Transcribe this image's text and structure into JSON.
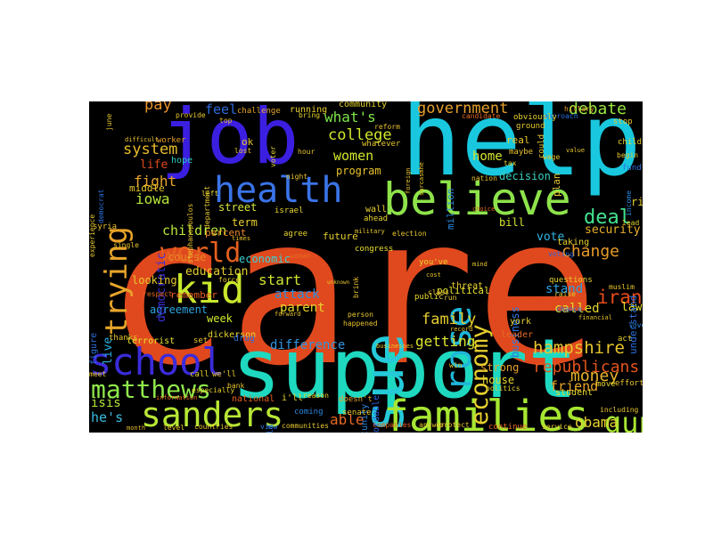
{
  "background": "#000000",
  "words": [
    {
      "text": "care",
      "color": "#e0491d"
    },
    {
      "text": "support",
      "color": "#1ed9c0"
    },
    {
      "text": "help",
      "color": "#19c8de"
    },
    {
      "text": "job",
      "color": "#3b1fe0"
    },
    {
      "text": "issue",
      "color": "#25c9d8"
    },
    {
      "text": "believe",
      "color": "#8ee34a"
    },
    {
      "text": "families",
      "color": "#a6e632"
    },
    {
      "text": "school",
      "color": "#3b2bdb"
    },
    {
      "text": "health",
      "color": "#3a74e8"
    },
    {
      "text": "sanders",
      "color": "#b7e635"
    },
    {
      "text": "matthews",
      "color": "#8fe84b"
    },
    {
      "text": "kid",
      "color": "#c8e82c"
    },
    {
      "text": "trying",
      "color": "#e8a52a"
    },
    {
      "text": "world",
      "color": "#e6601f"
    },
    {
      "text": "economy",
      "color": "#e8d02e"
    },
    {
      "text": "rose",
      "color": "#1fb6d9"
    },
    {
      "text": "gun",
      "color": "#a8e532"
    },
    {
      "text": "deal",
      "color": "#43e28f"
    },
    {
      "text": "government",
      "color": "#e8a12c"
    },
    {
      "text": "debate",
      "color": "#9ae740"
    },
    {
      "text": "college",
      "color": "#d2e72c"
    },
    {
      "text": "family",
      "color": "#e6cd2e"
    },
    {
      "text": "iran",
      "color": "#e84b1c"
    },
    {
      "text": "hampshire",
      "color": "#e8c62d"
    },
    {
      "text": "republicans",
      "color": "#e3541e"
    },
    {
      "text": "money",
      "color": "#e8b62c"
    },
    {
      "text": "obama",
      "color": "#e8d42e"
    },
    {
      "text": "isis",
      "color": "#b2e537"
    },
    {
      "text": "he's",
      "color": "#3bbde0"
    },
    {
      "text": "able",
      "color": "#e86a22"
    },
    {
      "text": "change",
      "color": "#e89a2a"
    },
    {
      "text": "getting",
      "color": "#dce52e"
    },
    {
      "text": "stand",
      "color": "#2a9fe2"
    },
    {
      "text": "called",
      "color": "#e3d92e"
    },
    {
      "text": "iowa",
      "color": "#b7e63a"
    },
    {
      "text": "system",
      "color": "#e8bd2c"
    },
    {
      "text": "fight",
      "color": "#e8a52a"
    },
    {
      "text": "children",
      "color": "#b8e635"
    },
    {
      "text": "women",
      "color": "#d4e62e"
    },
    {
      "text": "what's",
      "color": "#7de64a"
    },
    {
      "text": "feel",
      "color": "#2d6bd9"
    },
    {
      "text": "pay",
      "color": "#e8902a"
    },
    {
      "text": "start",
      "color": "#d0e52e"
    },
    {
      "text": "attack",
      "color": "#2a8de0"
    },
    {
      "text": "parent",
      "color": "#e8d52e"
    },
    {
      "text": "difference",
      "color": "#2e95e0"
    },
    {
      "text": "education",
      "color": "#e6cc2e"
    },
    {
      "text": "agreement",
      "color": "#2aa6e0"
    },
    {
      "text": "democratic",
      "color": "#3a2fd8"
    },
    {
      "text": "business",
      "color": "#2a78e0"
    },
    {
      "text": "vote",
      "color": "#30b5e2"
    },
    {
      "text": "bill",
      "color": "#d8e52e"
    },
    {
      "text": "home",
      "color": "#d6e72e"
    },
    {
      "text": "security",
      "color": "#e8b02c"
    },
    {
      "text": "house",
      "color": "#e8d72e"
    },
    {
      "text": "friend",
      "color": "#e8a52a"
    },
    {
      "text": "strong",
      "color": "#e8a22a"
    },
    {
      "text": "program",
      "color": "#e8c22d"
    },
    {
      "text": "street",
      "color": "#d6e53a"
    },
    {
      "text": "term",
      "color": "#e8cf2e"
    },
    {
      "text": "looking",
      "color": "#e8c82d"
    },
    {
      "text": "course",
      "color": "#e88a28"
    },
    {
      "text": "law",
      "color": "#e8e02e"
    },
    {
      "text": "rights",
      "color": "#e8d42e"
    },
    {
      "text": "life",
      "color": "#e0491d"
    },
    {
      "text": "live",
      "color": "#2ab0e0"
    },
    {
      "text": "week",
      "color": "#cfe82e"
    },
    {
      "text": "remember",
      "color": "#e8601f"
    },
    {
      "text": "percent",
      "color": "#e8862a"
    },
    {
      "text": "decision",
      "color": "#3ad0c0"
    },
    {
      "text": "real",
      "color": "#e8c92e"
    },
    {
      "text": "million",
      "color": "#2a88e0"
    },
    {
      "text": "political",
      "color": "#e8e02e"
    },
    {
      "text": "future",
      "color": "#e8cc2e"
    },
    {
      "text": "economic",
      "color": "#3ad0d0"
    },
    {
      "text": "middle",
      "color": "#e8c82d"
    },
    {
      "text": "ok",
      "color": "#e8c92e"
    },
    {
      "text": "understand",
      "color": "#2a70e0"
    },
    {
      "text": "dickerson",
      "color": "#e8d42e"
    },
    {
      "text": "york",
      "color": "#e8d22e"
    },
    {
      "text": "terrorist",
      "color": "#e8e02e"
    },
    {
      "text": "drug",
      "color": "#2a6ee0"
    },
    {
      "text": "thanks",
      "color": "#e8c52d"
    },
    {
      "text": "figure",
      "color": "#2a72e0"
    },
    {
      "text": "student",
      "color": "#e8d82e"
    },
    {
      "text": "leader",
      "color": "#e86a22"
    },
    {
      "text": "opportunity",
      "color": "#2a86e0"
    },
    {
      "text": "affordable",
      "color": "#2a62e0"
    },
    {
      "text": "plan",
      "color": "#e8c82d"
    },
    {
      "text": "community",
      "color": "#e8d42e"
    },
    {
      "text": "running",
      "color": "#e8d02e"
    },
    {
      "text": "hope",
      "color": "#2ad0c0"
    },
    {
      "text": "worker",
      "color": "#e8a02a"
    },
    {
      "text": "public",
      "color": "#e8d72e"
    },
    {
      "text": "threat",
      "color": "#e8d22e"
    },
    {
      "text": "provide",
      "color": "#e8c82d"
    },
    {
      "text": "challenge",
      "color": "#e8a52a"
    },
    {
      "text": "israel",
      "color": "#e8d42e"
    },
    {
      "text": "wall",
      "color": "#e8d22e"
    },
    {
      "text": "congress",
      "color": "#e8e02e"
    },
    {
      "text": "you've",
      "color": "#e8d02e"
    },
    {
      "text": "agree",
      "color": "#e8d42e"
    },
    {
      "text": "woman",
      "color": "#e86a22"
    },
    {
      "text": "national",
      "color": "#e8601f"
    },
    {
      "text": "coming",
      "color": "#2a88e0"
    },
    {
      "text": "doesn't",
      "color": "#e8a52a"
    },
    {
      "text": "build",
      "color": "#2a72e0"
    },
    {
      "text": "i'll",
      "color": "#e8d42e"
    },
    {
      "text": "we'll",
      "color": "#e8c82d"
    },
    {
      "text": "call",
      "color": "#e8d02e"
    },
    {
      "text": "meet",
      "color": "#e8c82d"
    },
    {
      "text": "bank",
      "color": "#e8c22d"
    },
    {
      "text": "especially",
      "color": "#e8d02e"
    },
    {
      "text": "countries",
      "color": "#e8c82d"
    },
    {
      "text": "level",
      "color": "#e8c22d"
    },
    {
      "text": "month",
      "color": "#e8b82c"
    },
    {
      "text": "view",
      "color": "#2a78e0"
    },
    {
      "text": "communities",
      "color": "#e8c82d"
    },
    {
      "text": "reason",
      "color": "#e8d42e"
    },
    {
      "text": "senate",
      "color": "#e8c82d"
    },
    {
      "text": "companies",
      "color": "#e8601f"
    },
    {
      "text": "answer",
      "color": "#e8c82d"
    },
    {
      "text": "protect",
      "color": "#e8c22d"
    },
    {
      "text": "continue",
      "color": "#e86a22"
    },
    {
      "text": "service",
      "color": "#e8c82d"
    },
    {
      "text": "including",
      "color": "#e8c82d"
    },
    {
      "text": "move",
      "color": "#e8d42e"
    },
    {
      "text": "effort",
      "color": "#e8c22d"
    },
    {
      "text": "act",
      "color": "#e8d42e"
    },
    {
      "text": "love",
      "color": "#2a88e0"
    },
    {
      "text": "chance",
      "color": "#2a78e0"
    },
    {
      "text": "raise",
      "color": "#e8c82d"
    },
    {
      "text": "questions",
      "color": "#e8d42e"
    },
    {
      "text": "taking",
      "color": "#e8d02e"
    },
    {
      "text": "voting",
      "color": "#2a62e0"
    },
    {
      "text": "muslim",
      "color": "#e8c82d"
    },
    {
      "text": "financial",
      "color": "#e8c22d"
    },
    {
      "text": "lead",
      "color": "#e8d42e"
    },
    {
      "text": "income",
      "color": "#2a88e0"
    },
    {
      "text": "fund",
      "color": "#2a72e0"
    },
    {
      "text": "begin",
      "color": "#e8c82d"
    },
    {
      "text": "child",
      "color": "#e8d42e"
    },
    {
      "text": "stop",
      "color": "#e8c82d"
    },
    {
      "text": "hillary",
      "color": "#e8a02a"
    },
    {
      "text": "approach",
      "color": "#2a6ee0"
    },
    {
      "text": "wage",
      "color": "#e8c82d"
    },
    {
      "text": "tax",
      "color": "#e8d42e"
    },
    {
      "text": "maybe",
      "color": "#e8c22d"
    },
    {
      "text": "ground",
      "color": "#e8c82d"
    },
    {
      "text": "obviously",
      "color": "#e8d42e"
    },
    {
      "text": "candidate",
      "color": "#e86a22"
    },
    {
      "text": "reform",
      "color": "#e8c22d"
    },
    {
      "text": "whatever",
      "color": "#e8c82d"
    },
    {
      "text": "voter",
      "color": "#e8d42e"
    },
    {
      "text": "hour",
      "color": "#e8c22d"
    },
    {
      "text": "night",
      "color": "#e8c82d"
    },
    {
      "text": "bring",
      "color": "#e8d42e"
    },
    {
      "text": "lost",
      "color": "#e8c82d"
    },
    {
      "text": "top",
      "color": "#e8c22d"
    },
    {
      "text": "department",
      "color": "#e8c82d"
    },
    {
      "text": "stephanopoulos",
      "color": "#e8c22d"
    },
    {
      "text": "left",
      "color": "#e8d42e"
    },
    {
      "text": "single",
      "color": "#e8c82d"
    },
    {
      "text": "syria",
      "color": "#e8c22d"
    },
    {
      "text": "experience",
      "color": "#e8c82d"
    },
    {
      "text": "democrat",
      "color": "#2a72e0"
    },
    {
      "text": "difficult",
      "color": "#e8c22d"
    },
    {
      "text": "june",
      "color": "#e8c82d"
    },
    {
      "text": "nation",
      "color": "#e8c22d"
    },
    {
      "text": "choice",
      "color": "#e86a22"
    },
    {
      "text": "election",
      "color": "#e8c82d"
    },
    {
      "text": "times",
      "color": "#e8c22d"
    },
    {
      "text": "military",
      "color": "#e8c82d"
    },
    {
      "text": "ahead",
      "color": "#e8d42e"
    },
    {
      "text": "force",
      "color": "#e8c82d"
    },
    {
      "text": "respect",
      "color": "#e86a22"
    },
    {
      "text": "set",
      "color": "#e8c82d"
    },
    {
      "text": "happened",
      "color": "#e8c22d"
    },
    {
      "text": "person",
      "color": "#e8c82d"
    },
    {
      "text": "record",
      "color": "#e8c22d"
    },
    {
      "text": "mind",
      "color": "#e8c82d"
    },
    {
      "text": "cost",
      "color": "#e8c22d"
    },
    {
      "text": "run",
      "color": "#e8c82d"
    },
    {
      "text": "class",
      "color": "#e8c22d"
    },
    {
      "text": "win",
      "color": "#e8c82d"
    },
    {
      "text": "politics",
      "color": "#e8d42e"
    },
    {
      "text": "businesses",
      "color": "#e8c82d"
    },
    {
      "text": "forward",
      "color": "#e8c22d"
    },
    {
      "text": "information",
      "color": "#e86a22"
    },
    {
      "text": "unknown",
      "color": "#e8c82d"
    },
    {
      "text": "brink",
      "color": "#e8c22d"
    },
    {
      "text": "sarcasmhe",
      "color": "#e8c82d"
    },
    {
      "text": "foreign",
      "color": "#e8c22d"
    },
    {
      "text": "could",
      "color": "#e8c82d"
    },
    {
      "text": "value",
      "color": "#e8c22d"
    }
  ]
}
